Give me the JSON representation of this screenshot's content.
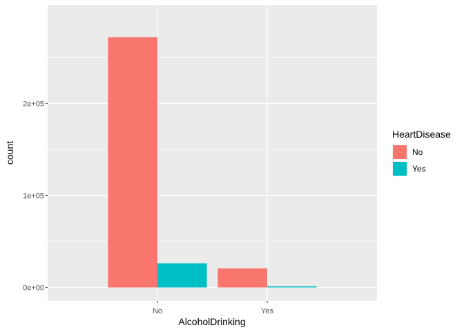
{
  "chart_data": {
    "type": "bar",
    "xlabel": "AlcoholDrinking",
    "ylabel": "count",
    "categories": [
      "No",
      "Yes"
    ],
    "series": [
      {
        "name": "No",
        "values": [
          271786,
          20636
        ],
        "color": "#F8766D"
      },
      {
        "name": "Yes",
        "values": [
          26232,
          1141
        ],
        "color": "#00BFC4"
      }
    ],
    "ylim": [
      -14600,
      307000
    ],
    "yticks": [
      0,
      100000,
      200000
    ],
    "ytick_labels": [
      "0e+00",
      "1e+05",
      "2e+05"
    ],
    "legend": {
      "title": "HeartDisease",
      "position": "right"
    },
    "grid": true,
    "panel_color": "#EBEBEB"
  }
}
